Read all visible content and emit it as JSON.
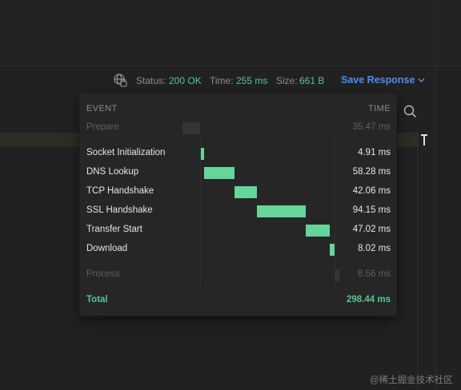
{
  "status_bar": {
    "status_label": "Status:",
    "status_value": "200 OK",
    "time_label": "Time:",
    "time_value": "255 ms",
    "size_label": "Size:",
    "size_value": "661 B",
    "save_response_label": "Save Response"
  },
  "timing_popup": {
    "header_event": "EVENT",
    "header_time": "TIME",
    "rows": [
      {
        "label": "Prepare",
        "time": "35.47 ms",
        "dim": true
      },
      {
        "label": "Socket Initialization",
        "time": "4.91 ms"
      },
      {
        "label": "DNS Lookup",
        "time": "58.28 ms"
      },
      {
        "label": "TCP Handshake",
        "time": "42.06 ms"
      },
      {
        "label": "SSL Handshake",
        "time": "94.15 ms"
      },
      {
        "label": "Transfer Start",
        "time": "47.02 ms"
      },
      {
        "label": "Download",
        "time": "8.02 ms"
      },
      {
        "label": "Process",
        "time": "8.56 ms",
        "dim": true
      }
    ],
    "total_label": "Total",
    "total_value": "298.44 ms"
  },
  "watermark": "@稀土掘金技术社区",
  "colors": {
    "accent_blue": "#4c8df6",
    "success_green": "#58c495",
    "bar_green": "#66d59c",
    "background": "#212121",
    "popup_background": "#262626"
  },
  "icons": [
    "globe-lock-icon",
    "chevron-down-icon",
    "search-icon"
  ]
}
